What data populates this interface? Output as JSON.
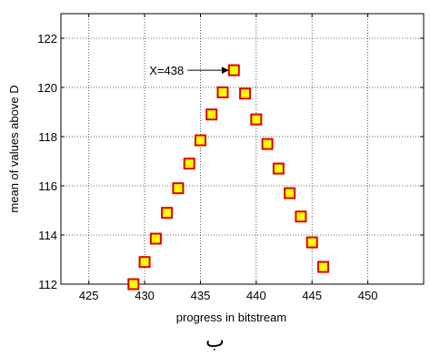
{
  "chart_data": {
    "type": "scatter",
    "title": "",
    "xlabel": "progress in bitstream",
    "ylabel": "mean of values above D",
    "xlim": [
      422.5,
      455
    ],
    "ylim": [
      112,
      123
    ],
    "xticks": [
      425,
      430,
      435,
      440,
      445,
      450
    ],
    "yticks": [
      112,
      114,
      116,
      118,
      120,
      122
    ],
    "grid": true,
    "marker": "square",
    "marker_face_color": "#ffff00",
    "marker_edge_color": "#e00000",
    "series": [
      {
        "x": [
          429,
          430,
          431,
          432,
          433,
          434,
          435,
          436,
          437,
          438,
          439,
          440,
          441,
          442,
          443,
          444,
          445,
          446
        ],
        "y": [
          112.0,
          112.9,
          113.85,
          114.9,
          115.9,
          116.9,
          117.85,
          118.9,
          119.8,
          120.7,
          119.75,
          118.7,
          117.7,
          116.7,
          115.7,
          114.75,
          113.7,
          112.7
        ]
      }
    ],
    "annotations": [
      {
        "text": "X=438",
        "x": 438,
        "y": 120.7,
        "arrow": true
      }
    ]
  },
  "footer": {
    "char": "ب"
  }
}
